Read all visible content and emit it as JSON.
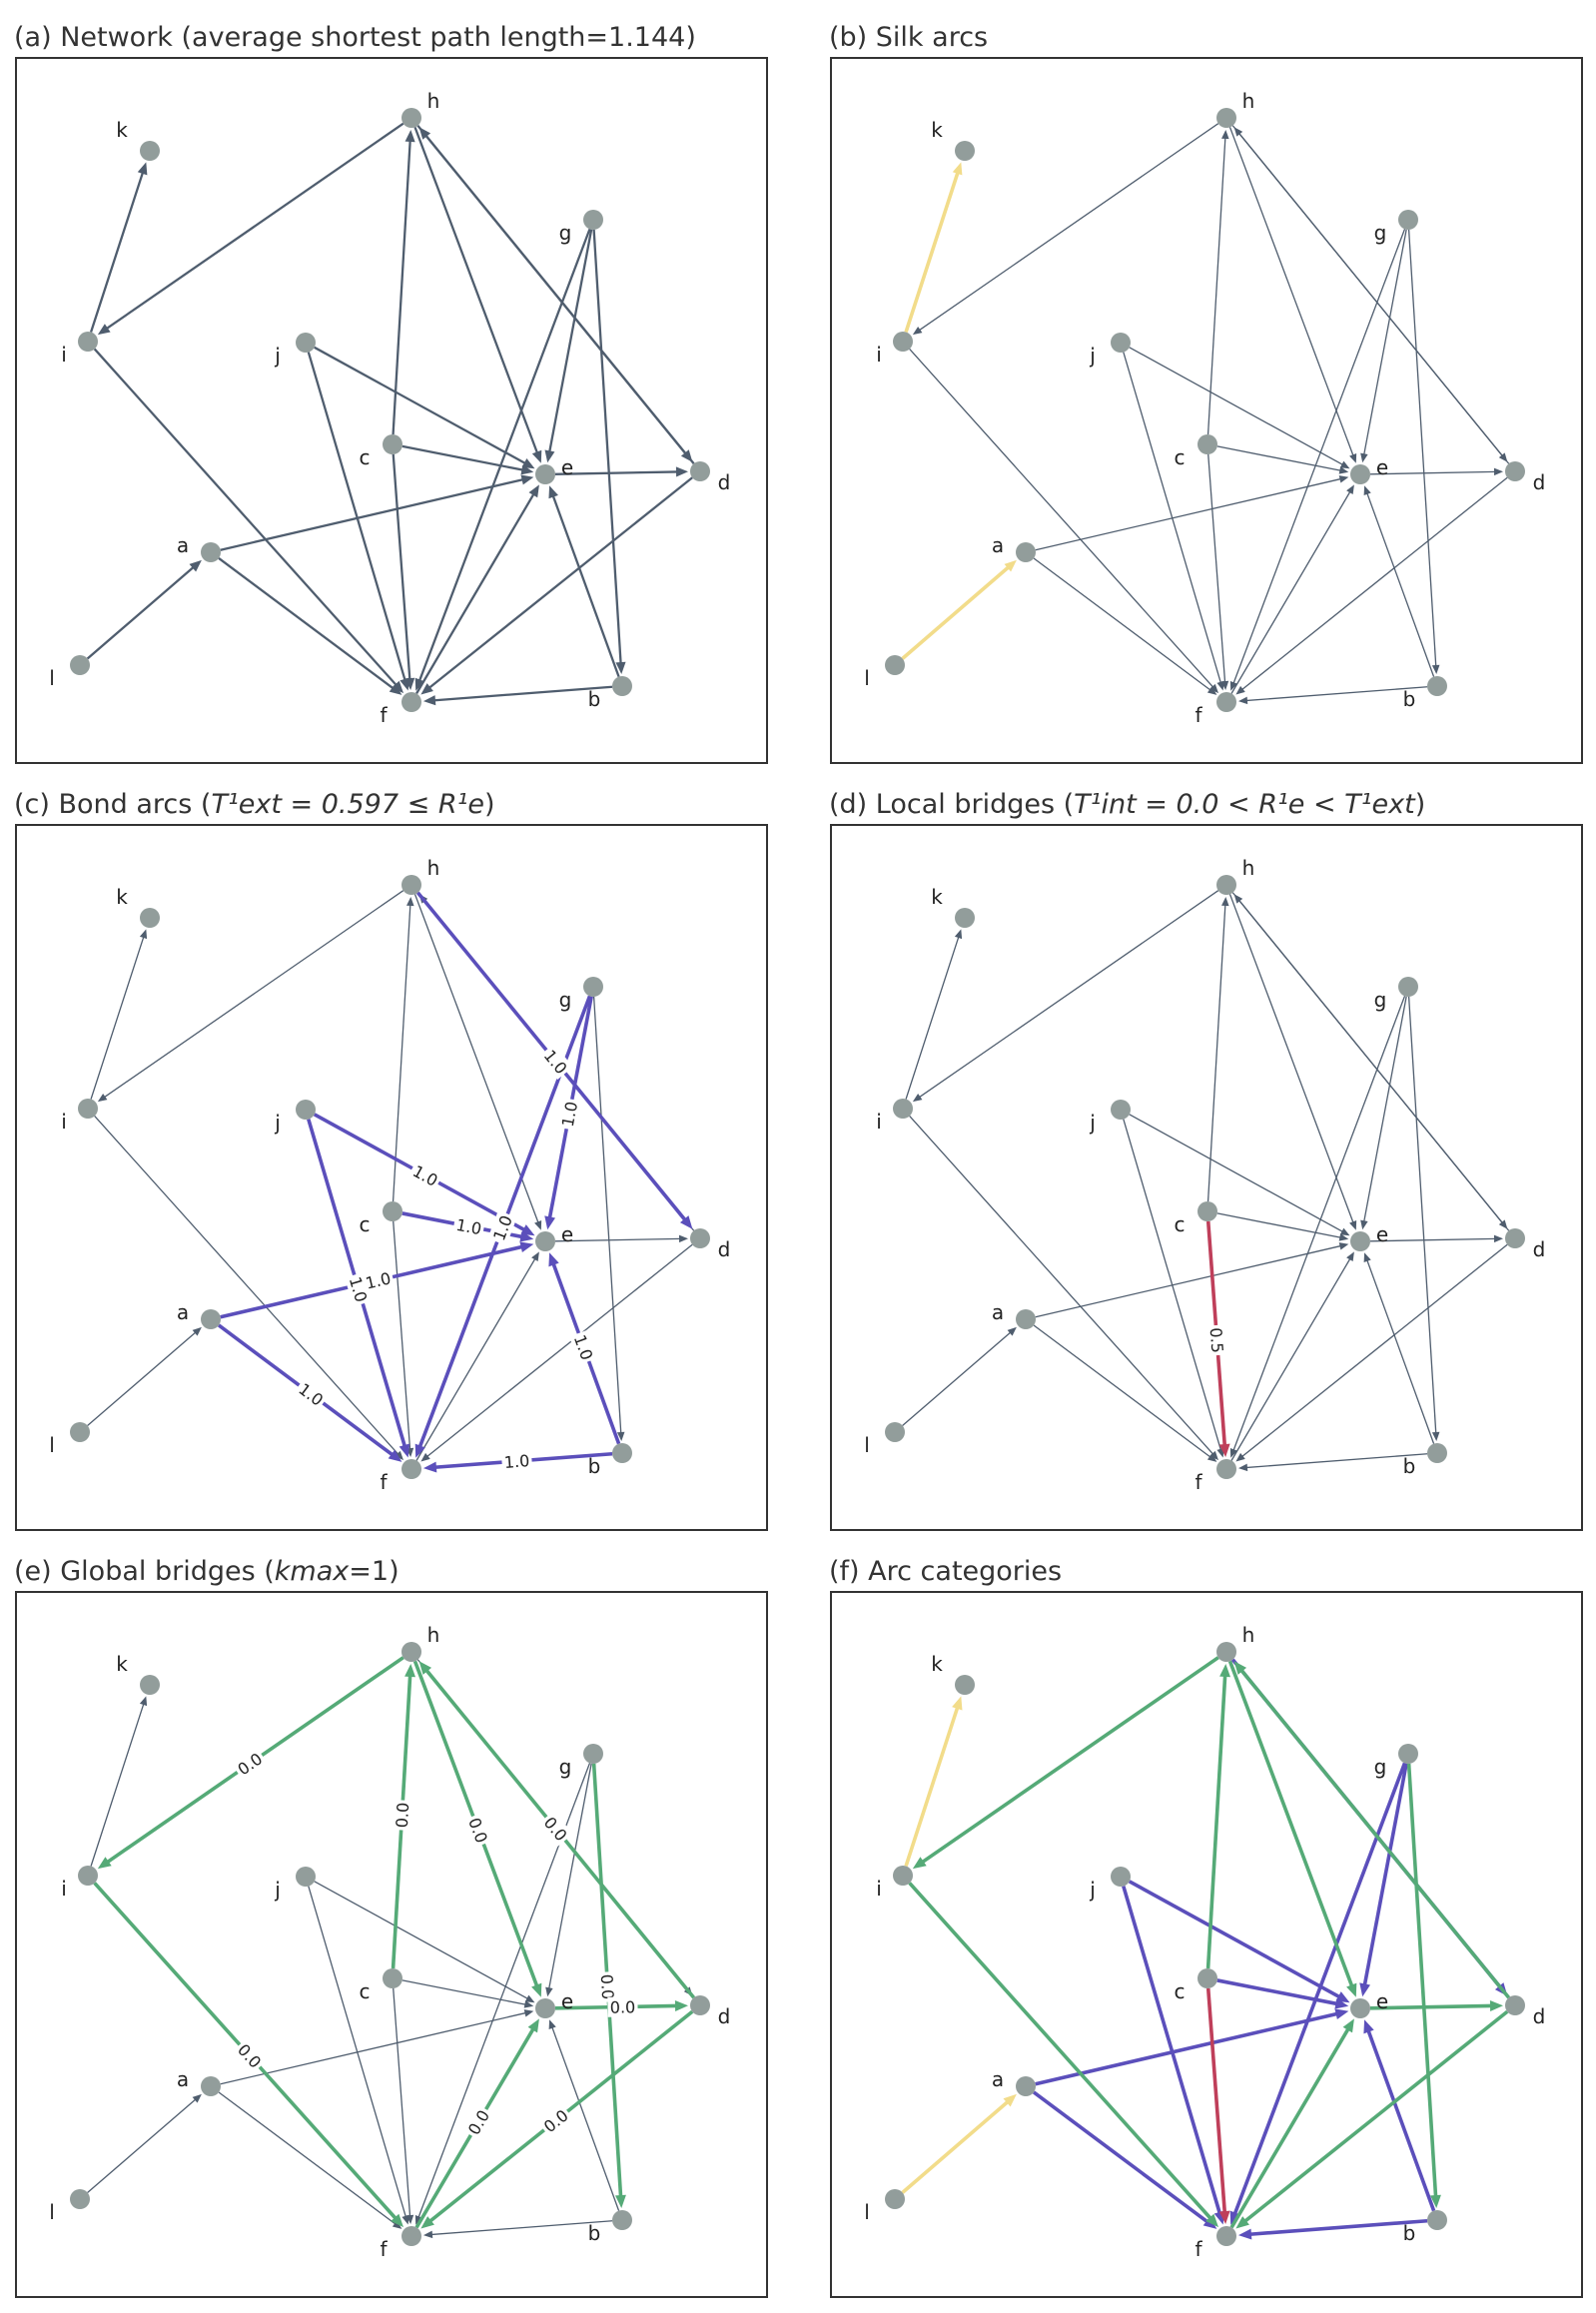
{
  "figure": {
    "panels": [
      {
        "id": "a",
        "title_text": "(a) Network (average shortest path length=1.144)",
        "title_math": "",
        "title_after": ""
      },
      {
        "id": "b",
        "title_text": "(b) Silk arcs",
        "title_math": "",
        "title_after": ""
      },
      {
        "id": "c",
        "title_text": "(c) Bond arcs (",
        "title_math": "T¹ext = 0.597 ≤ R¹e",
        "title_after": ")"
      },
      {
        "id": "d",
        "title_text": "(d) Local bridges (",
        "title_math": "T¹int = 0.0 < R¹e < T¹ext",
        "title_after": ")"
      },
      {
        "id": "e",
        "title_text": "(e) Global bridges (",
        "title_math": "kmax",
        "title_after": "=1)"
      },
      {
        "id": "f",
        "title_text": "(f) Arc categories",
        "title_math": "",
        "title_after": ""
      }
    ],
    "nodes": [
      "a",
      "b",
      "c",
      "d",
      "e",
      "f",
      "g",
      "h",
      "i",
      "j",
      "k",
      "l"
    ],
    "arcs": [
      {
        "from": "l",
        "to": "a",
        "category": "silk"
      },
      {
        "from": "i",
        "to": "k",
        "category": "silk"
      },
      {
        "from": "a",
        "to": "e",
        "category": "bond",
        "weight": "1.0"
      },
      {
        "from": "a",
        "to": "f",
        "category": "bond",
        "weight": "1.0"
      },
      {
        "from": "j",
        "to": "e",
        "category": "bond",
        "weight": "1.0"
      },
      {
        "from": "j",
        "to": "f",
        "category": "bond",
        "weight": "1.0"
      },
      {
        "from": "c",
        "to": "e",
        "category": "bond",
        "weight": "1.0"
      },
      {
        "from": "g",
        "to": "e",
        "category": "bond",
        "weight": "1.0"
      },
      {
        "from": "g",
        "to": "f",
        "category": "bond",
        "weight": "1.0"
      },
      {
        "from": "b",
        "to": "e",
        "category": "bond",
        "weight": "1.0"
      },
      {
        "from": "b",
        "to": "f",
        "category": "bond",
        "weight": "1.0"
      },
      {
        "from": "h",
        "to": "d",
        "category": "bond",
        "weight": "1.0"
      },
      {
        "from": "c",
        "to": "f",
        "category": "local",
        "weight": "0.5"
      },
      {
        "from": "h",
        "to": "i",
        "category": "global",
        "weight": "0.0"
      },
      {
        "from": "i",
        "to": "f",
        "category": "global",
        "weight": "0.0"
      },
      {
        "from": "c",
        "to": "h",
        "category": "global",
        "weight": "0.0"
      },
      {
        "from": "h",
        "to": "e",
        "category": "global",
        "weight": "0.0"
      },
      {
        "from": "d",
        "to": "h",
        "category": "global",
        "weight": "0.0"
      },
      {
        "from": "g",
        "to": "b",
        "category": "global",
        "weight": "0.0"
      },
      {
        "from": "e",
        "to": "d",
        "category": "global",
        "weight": "0.0"
      },
      {
        "from": "f",
        "to": "e",
        "category": "global",
        "weight": "0.0"
      },
      {
        "from": "d",
        "to": "f",
        "category": "global",
        "weight": "0.0"
      }
    ],
    "colors": {
      "default": "#4f5d6e",
      "silk": "#f2dc8a",
      "bond": "#5b4fbb",
      "local": "#bf3f5a",
      "global": "#55aa77",
      "node": "#929d9b",
      "frame": "#333333"
    }
  }
}
